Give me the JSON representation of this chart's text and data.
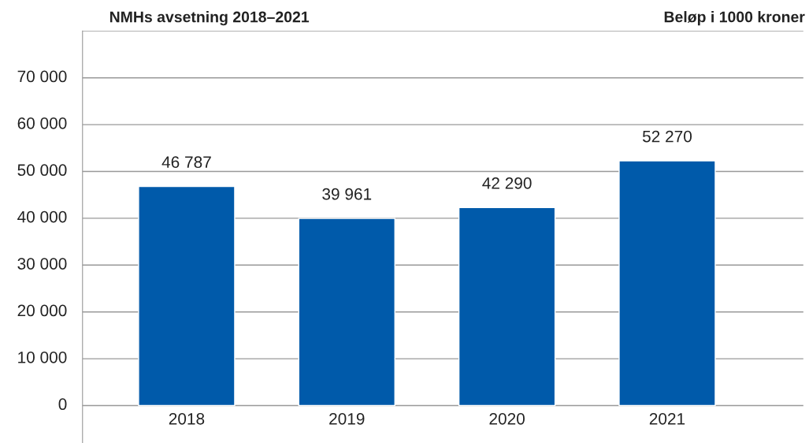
{
  "chart_data": {
    "type": "bar",
    "title": "NMHs avsetning 2018–2021",
    "subtitle": "Beløp i 1000 kroner",
    "categories": [
      "2018",
      "2019",
      "2020",
      "2021"
    ],
    "values": [
      46787,
      39961,
      42290,
      52270
    ],
    "color": "#005aaa",
    "value_labels": [
      "46 787",
      "39 961",
      "42 290",
      "52 270"
    ],
    "ylim": [
      -8000,
      80000
    ],
    "yticks": [
      {
        "value": 0,
        "label": "0"
      },
      {
        "value": 10000,
        "label": "10 000"
      },
      {
        "value": 20000,
        "label": "20 000"
      },
      {
        "value": 30000,
        "label": "30 000"
      },
      {
        "value": 40000,
        "label": "40 000"
      },
      {
        "value": 50000,
        "label": "50 000"
      },
      {
        "value": 60000,
        "label": "60 000"
      },
      {
        "value": 70000,
        "label": "70 000"
      },
      {
        "value": 80000,
        "label": null
      }
    ],
    "grid": "y"
  }
}
